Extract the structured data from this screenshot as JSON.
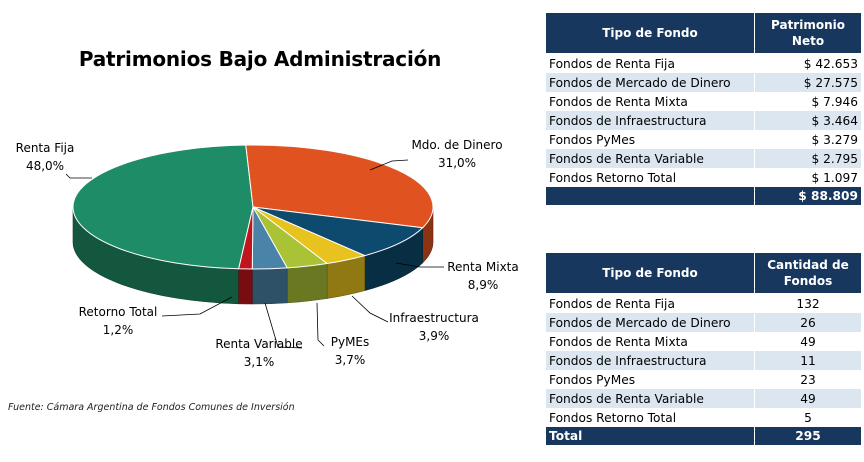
{
  "chart_data": {
    "type": "pie",
    "title": "Patrimonios Bajo Administración",
    "slices": [
      {
        "name": "Renta Fija",
        "percent_label": "48,0%",
        "value": 48.0,
        "color": "#1e8c66"
      },
      {
        "name": "Mdo. de Dinero",
        "percent_label": "31,0%",
        "value": 31.0,
        "color": "#e0521f"
      },
      {
        "name": "Renta Mixta",
        "percent_label": "8,9%",
        "value": 8.9,
        "color": "#0d4a6e"
      },
      {
        "name": "Infraestructura",
        "percent_label": "3,9%",
        "value": 3.9,
        "color": "#e8c21e"
      },
      {
        "name": "PyMEs",
        "percent_label": "3,7%",
        "value": 3.7,
        "color": "#a9c236"
      },
      {
        "name": "Renta Variable",
        "percent_label": "3,1%",
        "value": 3.1,
        "color": "#4a83a8"
      },
      {
        "name": "Retorno Total",
        "percent_label": "1,2%",
        "value": 1.2,
        "color": "#c0151c"
      }
    ]
  },
  "source_note": "Fuente:  Cámara Argentina de Fondos Comunes de Inversión",
  "table_patrimonio": {
    "header_col1": "Tipo de Fondo",
    "header_col2_line1": "Patrimonio",
    "header_col2_line2": "Neto",
    "rows": [
      {
        "name": "Fondos de Renta Fija",
        "value": "$ 42.653"
      },
      {
        "name": "Fondos de Mercado de Dinero",
        "value": "$ 27.575"
      },
      {
        "name": "Fondos de Renta Mixta",
        "value": "$ 7.946"
      },
      {
        "name": "Fondos de Infraestructura",
        "value": "$ 3.464"
      },
      {
        "name": "Fondos PyMes",
        "value": "$ 3.279"
      },
      {
        "name": "Fondos de Renta Variable",
        "value": "$ 2.795"
      },
      {
        "name": "Fondos Retorno Total",
        "value": "$ 1.097"
      }
    ],
    "total_label": "",
    "total_value": "$ 88.809"
  },
  "table_cantidad": {
    "header_col1": "Tipo de Fondo",
    "header_col2_line1": "Cantidad de",
    "header_col2_line2": "Fondos",
    "rows": [
      {
        "name": "Fondos de Renta Fija",
        "value": "132"
      },
      {
        "name": "Fondos de Mercado de Dinero",
        "value": "26"
      },
      {
        "name": "Fondos de Renta Mixta",
        "value": "49"
      },
      {
        "name": "Fondos de Infraestructura",
        "value": "11"
      },
      {
        "name": "Fondos PyMes",
        "value": "23"
      },
      {
        "name": "Fondos de Renta Variable",
        "value": "49"
      },
      {
        "name": "Fondos Retorno Total",
        "value": "5"
      }
    ],
    "total_label": "Total",
    "total_value": "295"
  }
}
